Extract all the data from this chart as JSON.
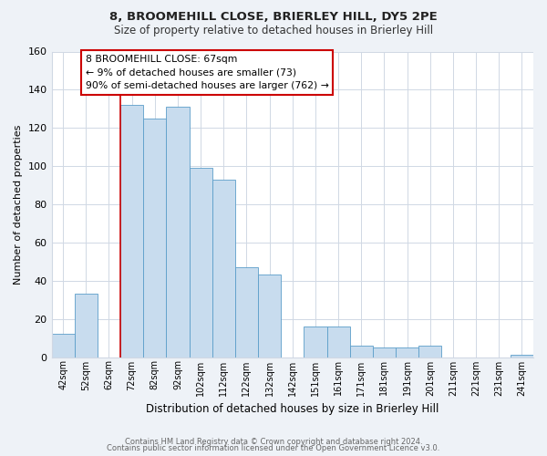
{
  "title": "8, BROOMEHILL CLOSE, BRIERLEY HILL, DY5 2PE",
  "subtitle": "Size of property relative to detached houses in Brierley Hill",
  "xlabel": "Distribution of detached houses by size in Brierley Hill",
  "ylabel": "Number of detached properties",
  "bin_labels": [
    "42sqm",
    "52sqm",
    "62sqm",
    "72sqm",
    "82sqm",
    "92sqm",
    "102sqm",
    "112sqm",
    "122sqm",
    "132sqm",
    "142sqm",
    "151sqm",
    "161sqm",
    "171sqm",
    "181sqm",
    "191sqm",
    "201sqm",
    "211sqm",
    "221sqm",
    "231sqm",
    "241sqm"
  ],
  "bar_heights": [
    12,
    33,
    0,
    132,
    125,
    131,
    99,
    93,
    47,
    43,
    0,
    16,
    16,
    6,
    5,
    5,
    6,
    0,
    0,
    0,
    1
  ],
  "bar_color": "#c8dcee",
  "bar_edge_color": "#5b9dc9",
  "vline_color": "#cc0000",
  "annotation_title": "8 BROOMEHILL CLOSE: 67sqm",
  "annotation_line1": "← 9% of detached houses are smaller (73)",
  "annotation_line2": "90% of semi-detached houses are larger (762) →",
  "annotation_box_facecolor": "#ffffff",
  "annotation_box_edgecolor": "#cc0000",
  "ylim": [
    0,
    160
  ],
  "yticks": [
    0,
    20,
    40,
    60,
    80,
    100,
    120,
    140,
    160
  ],
  "footer1": "Contains HM Land Registry data © Crown copyright and database right 2024.",
  "footer2": "Contains public sector information licensed under the Open Government Licence v3.0.",
  "bg_color": "#eef2f7",
  "plot_bg_color": "#ffffff",
  "grid_color": "#d0d8e4"
}
